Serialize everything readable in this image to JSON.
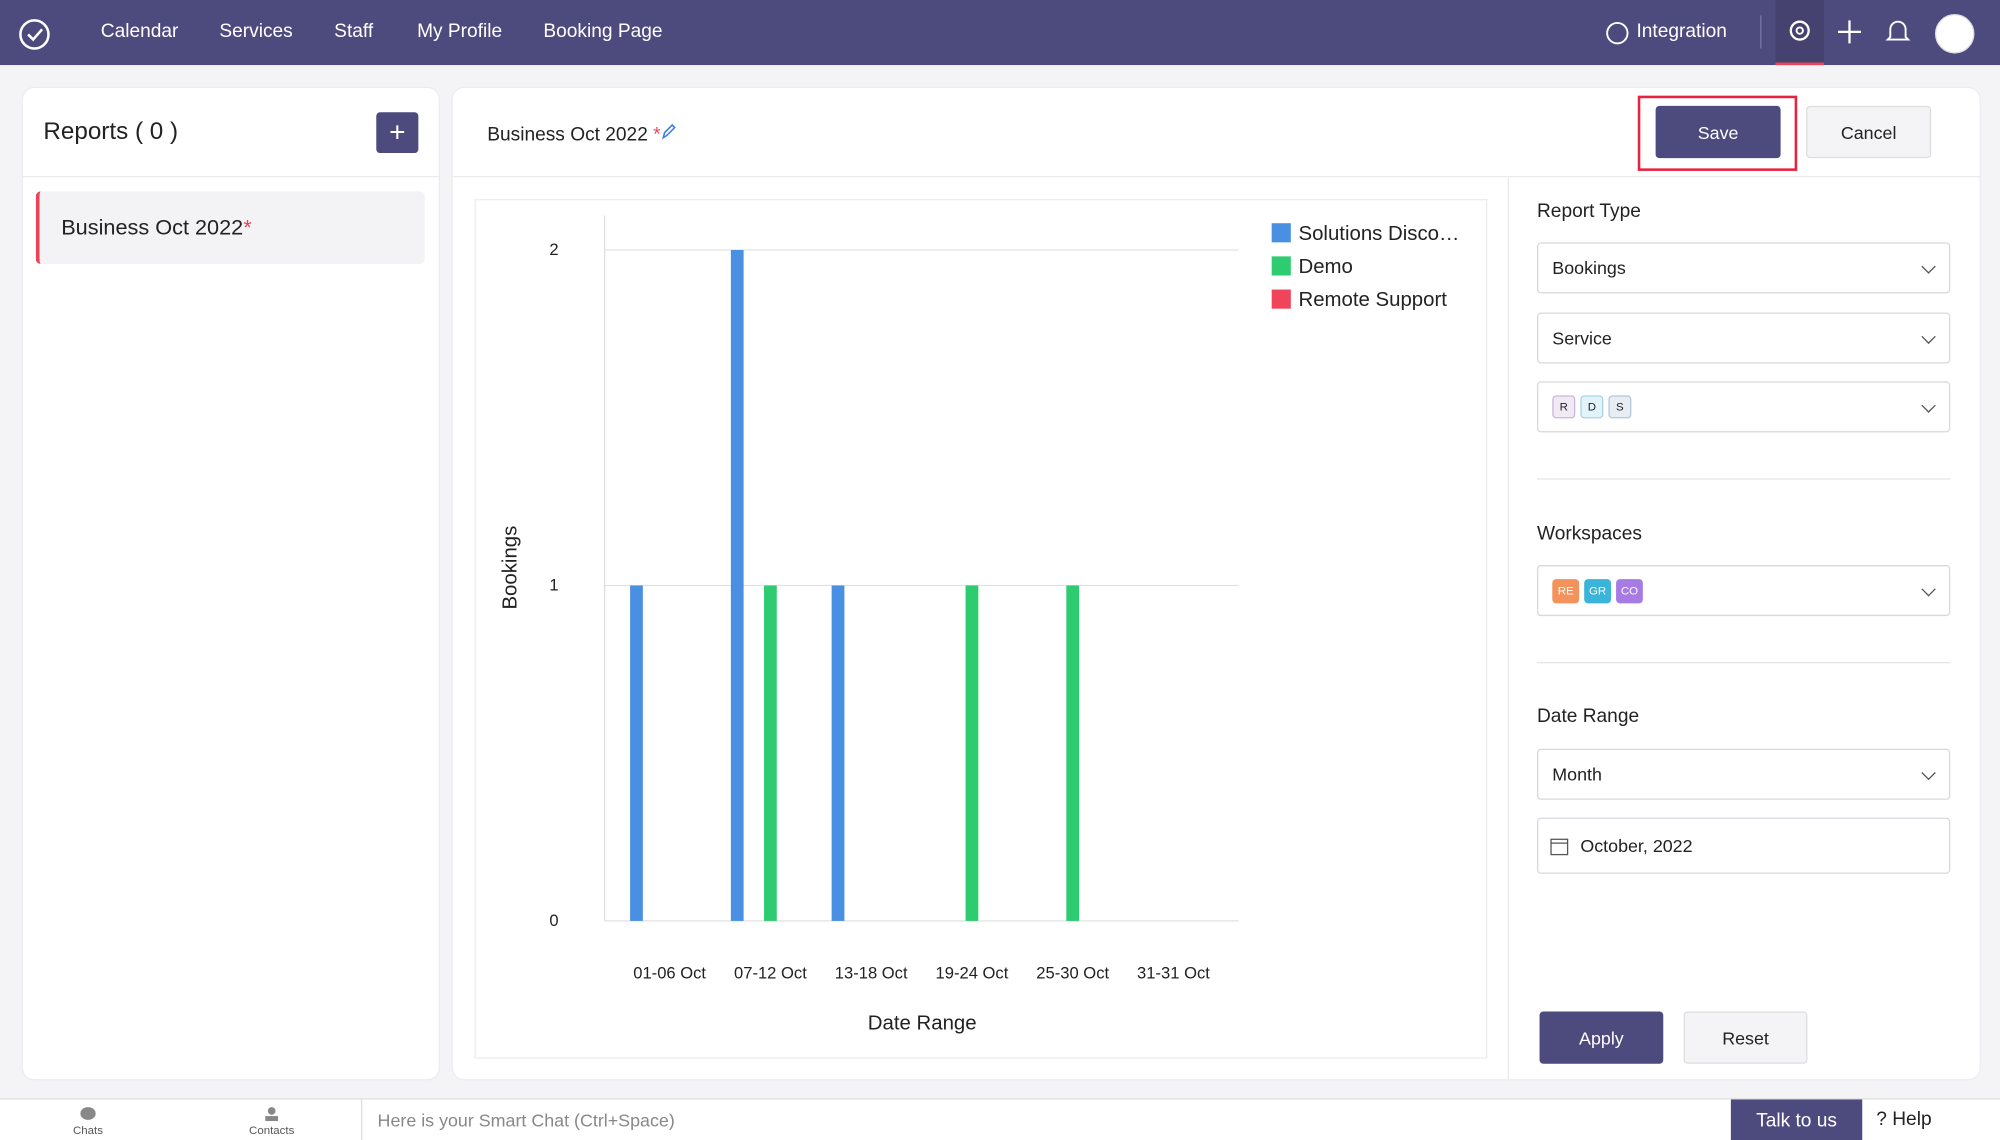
{
  "nav": {
    "items": [
      "Calendar",
      "Services",
      "Staff",
      "My Profile",
      "Booking Page"
    ],
    "integration": "Integration"
  },
  "sidebar": {
    "title": "Reports ( 0 )",
    "items": [
      {
        "label": "Business Oct 2022",
        "marker": "*"
      }
    ]
  },
  "report": {
    "title": "Business Oct 2022",
    "marker": "*",
    "save": "Save",
    "cancel": "Cancel"
  },
  "chart_data": {
    "type": "bar",
    "x_label": "Date Range",
    "y_label": "Bookings",
    "categories": [
      "01-06 Oct",
      "07-12 Oct",
      "13-18 Oct",
      "19-24 Oct",
      "25-30 Oct",
      "31-31 Oct"
    ],
    "series": [
      {
        "name": "Solutions Disco…",
        "color": "#4a90e2",
        "values": [
          1,
          2,
          1,
          0,
          0,
          0
        ]
      },
      {
        "name": "Demo",
        "color": "#2ecc71",
        "values": [
          0,
          1,
          0,
          1,
          1,
          0
        ]
      },
      {
        "name": "Remote Support",
        "color": "#f0445a",
        "values": [
          0,
          0,
          0,
          0,
          0,
          0
        ]
      }
    ],
    "ylim": [
      0,
      2
    ],
    "yticks": [
      0,
      1,
      2
    ],
    "grid": true,
    "legend": "top-right"
  },
  "filters": {
    "report_type": {
      "label": "Report Type",
      "selects": [
        "Bookings",
        "Service"
      ],
      "chips": [
        "R",
        "D",
        "S"
      ]
    },
    "workspaces": {
      "label": "Workspaces",
      "chips": [
        "RE",
        "GR",
        "CO"
      ]
    },
    "date_range": {
      "label": "Date Range",
      "select": "Month",
      "date": "October, 2022"
    },
    "apply": "Apply",
    "reset": "Reset"
  },
  "bottom": {
    "chats": "Chats",
    "contacts": "Contacts",
    "placeholder": "Here is your Smart Chat (Ctrl+Space)",
    "talk": "Talk to us",
    "help": "Help"
  }
}
